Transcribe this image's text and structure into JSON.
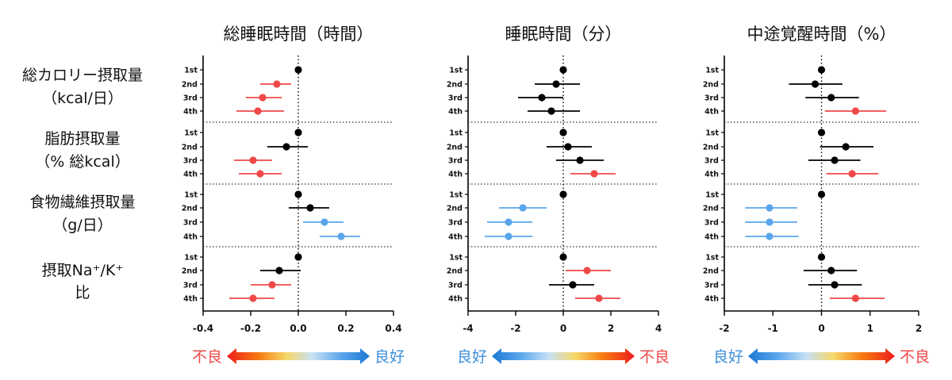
{
  "row_labels": [
    {
      "line1": "総カロリー摂取量",
      "line2": "（kcal/日）"
    },
    {
      "line1": "脂肪摂取量",
      "line2": "（% 総kcal）"
    },
    {
      "line1": "食物繊維摂取量",
      "line2": "（g/日）"
    },
    {
      "line1": "摂取Na⁺/K⁺",
      "line2": "比"
    }
  ],
  "colors": {
    "black": "#000000",
    "red": "#f04848",
    "blue": "#5aa6ec"
  },
  "chart_data": [
    {
      "type": "scatter",
      "title": "総睡眠時間（時間）",
      "xlim": [
        -0.4,
        0.4
      ],
      "xticks": [
        "-0.4",
        "-0.2",
        "0.0",
        "0.2",
        "0.4"
      ],
      "xtick_values": [
        -0.4,
        -0.2,
        0.0,
        0.2,
        0.4
      ],
      "ref_line": 0,
      "categories": [
        "1st",
        "2nd",
        "3rd",
        "4th"
      ],
      "groups": [
        {
          "points": [
            {
              "v": 0.0,
              "lo": 0.0,
              "hi": 0.0,
              "c": "black"
            },
            {
              "v": -0.09,
              "lo": -0.16,
              "hi": -0.03,
              "c": "red"
            },
            {
              "v": -0.15,
              "lo": -0.22,
              "hi": -0.07,
              "c": "red"
            },
            {
              "v": -0.17,
              "lo": -0.26,
              "hi": -0.06,
              "c": "red"
            }
          ]
        },
        {
          "points": [
            {
              "v": 0.0,
              "lo": 0.0,
              "hi": 0.0,
              "c": "black"
            },
            {
              "v": -0.05,
              "lo": -0.13,
              "hi": 0.04,
              "c": "black"
            },
            {
              "v": -0.19,
              "lo": -0.27,
              "hi": -0.11,
              "c": "red"
            },
            {
              "v": -0.16,
              "lo": -0.25,
              "hi": -0.07,
              "c": "red"
            }
          ]
        },
        {
          "points": [
            {
              "v": 0.0,
              "lo": 0.0,
              "hi": 0.0,
              "c": "black"
            },
            {
              "v": 0.05,
              "lo": -0.04,
              "hi": 0.13,
              "c": "black"
            },
            {
              "v": 0.11,
              "lo": 0.02,
              "hi": 0.19,
              "c": "blue"
            },
            {
              "v": 0.18,
              "lo": 0.09,
              "hi": 0.26,
              "c": "blue"
            }
          ]
        },
        {
          "points": [
            {
              "v": 0.0,
              "lo": 0.0,
              "hi": 0.0,
              "c": "black"
            },
            {
              "v": -0.08,
              "lo": -0.16,
              "hi": 0.01,
              "c": "black"
            },
            {
              "v": -0.11,
              "lo": -0.2,
              "hi": -0.03,
              "c": "red"
            },
            {
              "v": -0.19,
              "lo": -0.29,
              "hi": -0.1,
              "c": "red"
            }
          ]
        }
      ],
      "legend": {
        "left_text": "不良",
        "right_text": "良好",
        "left_color": "#f04848",
        "right_color": "#3f8fdb",
        "direction": "red-to-blue"
      }
    },
    {
      "type": "scatter",
      "title": "睡眠時間（分）",
      "xlim": [
        -4,
        4
      ],
      "xticks": [
        "-4",
        "-2",
        "0",
        "2",
        "4"
      ],
      "xtick_values": [
        -4,
        -2,
        0,
        2,
        4
      ],
      "ref_line": 0,
      "categories": [
        "1st",
        "2nd",
        "3rd",
        "4th"
      ],
      "groups": [
        {
          "points": [
            {
              "v": 0.0,
              "lo": 0.0,
              "hi": 0.0,
              "c": "black"
            },
            {
              "v": -0.3,
              "lo": -1.2,
              "hi": 0.7,
              "c": "black"
            },
            {
              "v": -0.9,
              "lo": -1.9,
              "hi": 0.0,
              "c": "black"
            },
            {
              "v": -0.5,
              "lo": -1.5,
              "hi": 0.7,
              "c": "black"
            }
          ]
        },
        {
          "points": [
            {
              "v": 0.0,
              "lo": 0.0,
              "hi": 0.0,
              "c": "black"
            },
            {
              "v": 0.2,
              "lo": -0.7,
              "hi": 1.2,
              "c": "black"
            },
            {
              "v": 0.7,
              "lo": -0.3,
              "hi": 1.7,
              "c": "black"
            },
            {
              "v": 1.3,
              "lo": 0.3,
              "hi": 2.2,
              "c": "red"
            }
          ]
        },
        {
          "points": [
            {
              "v": 0.0,
              "lo": 0.0,
              "hi": 0.0,
              "c": "black"
            },
            {
              "v": -1.7,
              "lo": -2.7,
              "hi": -0.7,
              "c": "blue"
            },
            {
              "v": -2.3,
              "lo": -3.2,
              "hi": -1.3,
              "c": "blue"
            },
            {
              "v": -2.3,
              "lo": -3.3,
              "hi": -1.3,
              "c": "blue"
            }
          ]
        },
        {
          "points": [
            {
              "v": 0.0,
              "lo": 0.0,
              "hi": 0.0,
              "c": "black"
            },
            {
              "v": 1.0,
              "lo": 0.1,
              "hi": 2.0,
              "c": "red"
            },
            {
              "v": 0.4,
              "lo": -0.6,
              "hi": 1.3,
              "c": "black"
            },
            {
              "v": 1.5,
              "lo": 0.5,
              "hi": 2.4,
              "c": "red"
            }
          ]
        }
      ],
      "legend": {
        "left_text": "良好",
        "right_text": "不良",
        "left_color": "#3f8fdb",
        "right_color": "#f04848",
        "direction": "blue-to-red"
      }
    },
    {
      "type": "scatter",
      "title": "中途覚醒時間（%）",
      "xlim": [
        -2,
        2
      ],
      "xticks": [
        "-2",
        "-1",
        "0",
        "1",
        "2"
      ],
      "xtick_values": [
        -2,
        -1,
        0,
        1,
        2
      ],
      "ref_line": 0,
      "categories": [
        "1st",
        "2nd",
        "3rd",
        "4th"
      ],
      "groups": [
        {
          "points": [
            {
              "v": 0.0,
              "lo": 0.0,
              "hi": 0.0,
              "c": "black"
            },
            {
              "v": -0.13,
              "lo": -0.67,
              "hi": 0.43,
              "c": "black"
            },
            {
              "v": 0.2,
              "lo": -0.33,
              "hi": 0.77,
              "c": "black"
            },
            {
              "v": 0.7,
              "lo": 0.07,
              "hi": 1.33,
              "c": "red"
            }
          ]
        },
        {
          "points": [
            {
              "v": 0.0,
              "lo": 0.0,
              "hi": 0.0,
              "c": "black"
            },
            {
              "v": 0.5,
              "lo": -0.03,
              "hi": 1.07,
              "c": "black"
            },
            {
              "v": 0.27,
              "lo": -0.27,
              "hi": 0.8,
              "c": "black"
            },
            {
              "v": 0.63,
              "lo": 0.1,
              "hi": 1.17,
              "c": "red"
            }
          ]
        },
        {
          "points": [
            {
              "v": 0.0,
              "lo": 0.0,
              "hi": 0.0,
              "c": "black"
            },
            {
              "v": -1.07,
              "lo": -1.57,
              "hi": -0.5,
              "c": "blue"
            },
            {
              "v": -1.07,
              "lo": -1.57,
              "hi": -0.5,
              "c": "blue"
            },
            {
              "v": -1.07,
              "lo": -1.57,
              "hi": -0.47,
              "c": "blue"
            }
          ]
        },
        {
          "points": [
            {
              "v": 0.0,
              "lo": 0.0,
              "hi": 0.0,
              "c": "black"
            },
            {
              "v": 0.2,
              "lo": -0.37,
              "hi": 0.73,
              "c": "black"
            },
            {
              "v": 0.27,
              "lo": -0.27,
              "hi": 0.83,
              "c": "black"
            },
            {
              "v": 0.7,
              "lo": 0.17,
              "hi": 1.3,
              "c": "red"
            }
          ]
        }
      ],
      "legend": {
        "left_text": "良好",
        "right_text": "不良",
        "left_color": "#3f8fdb",
        "right_color": "#f04848",
        "direction": "blue-to-red"
      }
    }
  ]
}
